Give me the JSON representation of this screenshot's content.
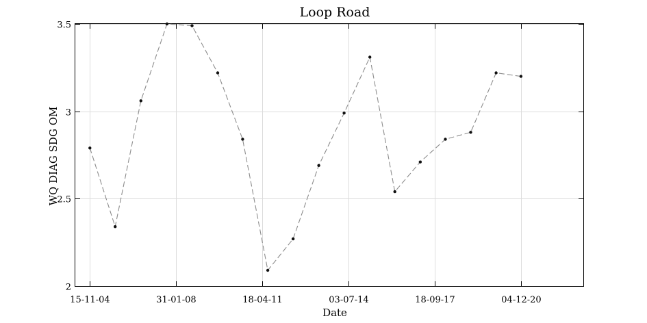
{
  "chart_data": {
    "type": "line",
    "title": "Loop Road",
    "xlabel": "Date",
    "ylabel": "WQ DIAG SDG OM",
    "x_tick_labels": [
      "15-11-04",
      "31-01-08",
      "18-04-11",
      "03-07-14",
      "18-09-17",
      "04-12-20"
    ],
    "x_ticks": [
      "2004-11-15",
      "2008-01-31",
      "2011-04-18",
      "2014-07-03",
      "2017-09-18",
      "2020-12-04"
    ],
    "xlim": [
      "2004-05-01",
      "2023-04-01"
    ],
    "y_tick_labels": [
      "2",
      "2.5",
      "3",
      "3.5"
    ],
    "y_ticks": [
      2,
      2.5,
      3,
      3.5
    ],
    "ylim": [
      2,
      3.5
    ],
    "grid": true,
    "series": [
      {
        "x": [
          "2004-11-15",
          "2005-10-25",
          "2006-10-10",
          "2007-09-30",
          "2008-09-05",
          "2009-08-20",
          "2010-07-25",
          "2011-07-01",
          "2012-06-10",
          "2013-05-25",
          "2014-05-05",
          "2015-04-20",
          "2016-03-25",
          "2017-03-05",
          "2018-02-10",
          "2019-01-20",
          "2020-01-01",
          "2020-12-04"
        ],
        "y": [
          2.79,
          2.34,
          3.06,
          3.5,
          3.49,
          3.22,
          2.84,
          2.09,
          2.27,
          2.69,
          2.99,
          3.31,
          2.54,
          2.71,
          2.84,
          2.88,
          3.22,
          3.2
        ]
      }
    ]
  }
}
